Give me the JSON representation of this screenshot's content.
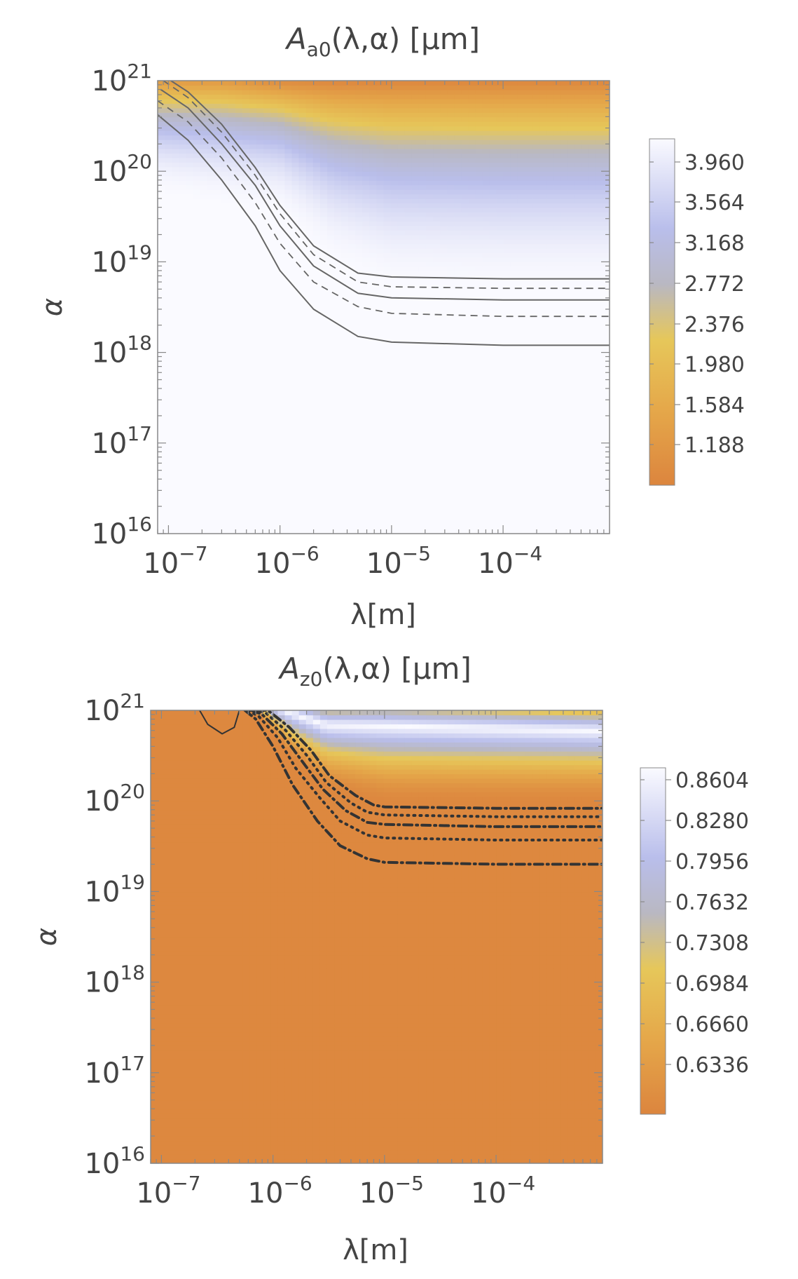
{
  "colors": {
    "orange": "#DC853E",
    "mid_orange": "#E5A84A",
    "yellow": "#E6C75A",
    "gray": "#B9B8C2",
    "blue": "#B9BEEB",
    "white": "#FAFAFF",
    "contour_light": "#666666",
    "contour_dark": "#333333"
  },
  "chart_data": [
    {
      "type": "heatmap",
      "title": {
        "italic": "A",
        "sub": "a0",
        "rest": "(λ,α) [μm]"
      },
      "xlabel": "λ[m]",
      "ylabel": "α",
      "x_scale": "log",
      "y_scale": "log",
      "xlim": [
        8e-08,
        0.0009
      ],
      "ylim": [
        1e+16,
        1e+21
      ],
      "x_ticks": [
        {
          "value": 1e-07,
          "base": "10",
          "exp": "−7"
        },
        {
          "value": 1e-06,
          "base": "10",
          "exp": "−6"
        },
        {
          "value": 1e-05,
          "base": "10",
          "exp": "−5"
        },
        {
          "value": 0.0001,
          "base": "10",
          "exp": "−4"
        }
      ],
      "y_ticks": [
        {
          "value": 1e+16,
          "base": "10",
          "exp": "16"
        },
        {
          "value": 1e+17,
          "base": "10",
          "exp": "17"
        },
        {
          "value": 1e+18,
          "base": "10",
          "exp": "18"
        },
        {
          "value": 1e+19,
          "base": "10",
          "exp": "19"
        },
        {
          "value": 1e+20,
          "base": "10",
          "exp": "20"
        },
        {
          "value": 1e+21,
          "base": "10",
          "exp": "21"
        }
      ],
      "colorbar": {
        "min": 0.95,
        "max": 4.2,
        "ticks": [
          "3.960",
          "3.564",
          "3.168",
          "2.772",
          "2.376",
          "1.980",
          "1.584",
          "1.188"
        ]
      },
      "field": {
        "baseline": 4.2,
        "lower_boundary": [
          [
            8e-08,
            5e+19
          ],
          [
            1e-06,
            3e+19
          ],
          [
            3e-06,
            8e+18
          ],
          [
            1e-05,
            4e+18
          ],
          [
            0.0001,
            3.5e+18
          ],
          [
            0.0009,
            3.5e+18
          ]
        ],
        "trough": [
          [
            8e-08,
            1.2e+21
          ],
          [
            3e-07,
            1.2e+21
          ],
          [
            1e-06,
            1.05e+21
          ],
          [
            3e-06,
            1e+21
          ],
          [
            0.0009,
            1e+21
          ]
        ],
        "peak_min": 1.0
      },
      "contours": [
        {
          "style": "solid",
          "points": [
            [
              8e-08,
              4.2e+20
            ],
            [
              1.5e-07,
              2.2e+20
            ],
            [
              3e-07,
              8e+19
            ],
            [
              6e-07,
              2.5e+19
            ],
            [
              1e-06,
              8e+18
            ],
            [
              2e-06,
              3e+18
            ],
            [
              5e-06,
              1.5e+18
            ],
            [
              1e-05,
              1.3e+18
            ],
            [
              0.0001,
              1.2e+18
            ],
            [
              0.0009,
              1.2e+18
            ]
          ]
        },
        {
          "style": "dashed",
          "points": [
            [
              8e-08,
              6e+20
            ],
            [
              1.5e-07,
              3.5e+20
            ],
            [
              3e-07,
              1.4e+20
            ],
            [
              6e-07,
              4.5e+19
            ],
            [
              1e-06,
              1.6e+19
            ],
            [
              2e-06,
              6e+18
            ],
            [
              5e-06,
              3.2e+18
            ],
            [
              1e-05,
              2.7e+18
            ],
            [
              0.0001,
              2.5e+18
            ],
            [
              0.0009,
              2.5e+18
            ]
          ]
        },
        {
          "style": "solid",
          "points": [
            [
              8.5e-08,
              8e+20
            ],
            [
              1.5e-07,
              5e+20
            ],
            [
              3e-07,
              2e+20
            ],
            [
              6e-07,
              7e+19
            ],
            [
              1e-06,
              2.5e+19
            ],
            [
              2e-06,
              9e+18
            ],
            [
              5e-06,
              4.5e+18
            ],
            [
              1e-05,
              4e+18
            ],
            [
              0.0001,
              3.8e+18
            ],
            [
              0.0009,
              3.8e+18
            ]
          ]
        },
        {
          "style": "dashed",
          "points": [
            [
              9e-08,
              1e+21
            ],
            [
              1.5e-07,
              6.5e+20
            ],
            [
              3e-07,
              2.7e+20
            ],
            [
              6e-07,
              9e+19
            ],
            [
              1e-06,
              3.4e+19
            ],
            [
              2e-06,
              1.2e+19
            ],
            [
              5e-06,
              6e+18
            ],
            [
              1e-05,
              5.3e+18
            ],
            [
              0.0001,
              5.1e+18
            ],
            [
              0.0009,
              5.1e+18
            ]
          ]
        },
        {
          "style": "solid",
          "points": [
            [
              1.05e-07,
              1e+21
            ],
            [
              1.5e-07,
              7.5e+20
            ],
            [
              3e-07,
              3.3e+20
            ],
            [
              6e-07,
              1.1e+20
            ],
            [
              1e-06,
              4.2e+19
            ],
            [
              2e-06,
              1.5e+19
            ],
            [
              5e-06,
              7.5e+18
            ],
            [
              1e-05,
              6.8e+18
            ],
            [
              0.0001,
              6.5e+18
            ],
            [
              0.0009,
              6.5e+18
            ]
          ]
        }
      ]
    },
    {
      "type": "heatmap",
      "title": {
        "italic": "A",
        "sub": "z0",
        "rest": "(λ,α) [μm]"
      },
      "xlabel": "λ[m]",
      "ylabel": "α",
      "x_scale": "log",
      "y_scale": "log",
      "xlim": [
        8e-08,
        0.0009
      ],
      "ylim": [
        1e+16,
        1e+21
      ],
      "x_ticks": [
        {
          "value": 1e-07,
          "base": "10",
          "exp": "−7"
        },
        {
          "value": 1e-06,
          "base": "10",
          "exp": "−6"
        },
        {
          "value": 1e-05,
          "base": "10",
          "exp": "−5"
        },
        {
          "value": 0.0001,
          "base": "10",
          "exp": "−4"
        }
      ],
      "y_ticks": [
        {
          "value": 1e+16,
          "base": "10",
          "exp": "16"
        },
        {
          "value": 1e+17,
          "base": "10",
          "exp": "17"
        },
        {
          "value": 1e+18,
          "base": "10",
          "exp": "18"
        },
        {
          "value": 1e+19,
          "base": "10",
          "exp": "19"
        },
        {
          "value": 1e+20,
          "base": "10",
          "exp": "20"
        },
        {
          "value": 1e+21,
          "base": "10",
          "exp": "21"
        }
      ],
      "colorbar": {
        "min": 0.615,
        "max": 0.878,
        "ticks": [
          "0.8604",
          "0.8280",
          "0.7956",
          "0.7632",
          "0.7308",
          "0.6984",
          "0.6660",
          "0.6336"
        ]
      },
      "field": {
        "baseline": 0.62,
        "upper_onset": [
          [
            8e-08,
            1.6e+21
          ],
          [
            5e-07,
            1.6e+21
          ],
          [
            8e-07,
            8e+20
          ],
          [
            1.5e-06,
            3e+20
          ],
          [
            3e-06,
            1.4e+20
          ],
          [
            1e-05,
            1e+20
          ],
          [
            0.0009,
            1e+20
          ]
        ],
        "peak_alpha": [
          [
            8e-08,
            2e+21
          ],
          [
            6e-07,
            1.6e+21
          ],
          [
            1e-06,
            1.1e+21
          ],
          [
            3e-06,
            7e+20
          ],
          [
            0.0009,
            6e+20
          ]
        ],
        "peak_max": 0.878
      },
      "contours": [
        {
          "style": "solid",
          "points": [
            [
              2.2e-07,
              1e+21
            ],
            [
              2.6e-07,
              7e+20
            ],
            [
              3.5e-07,
              5.5e+20
            ],
            [
              4.5e-07,
              6.5e+20
            ],
            [
              5e-07,
              1e+21
            ]
          ]
        },
        {
          "style": "dashdot",
          "points": [
            [
              5.6e-07,
              1e+21
            ],
            [
              7e-07,
              8e+20
            ],
            [
              1e-06,
              4e+20
            ],
            [
              1.5e-06,
              1.5e+20
            ],
            [
              2.5e-06,
              6e+19
            ],
            [
              4e-06,
              3.2e+19
            ],
            [
              7e-06,
              2.3e+19
            ],
            [
              1e-05,
              2.1e+19
            ],
            [
              0.0001,
              2e+19
            ],
            [
              0.0009,
              2e+19
            ]
          ]
        },
        {
          "style": "dotted",
          "points": [
            [
              6e-07,
              1e+21
            ],
            [
              7.5e-07,
              8.5e+20
            ],
            [
              1.1e-06,
              5e+20
            ],
            [
              1.6e-06,
              2.3e+20
            ],
            [
              2.6e-06,
              1.1e+20
            ],
            [
              4e-06,
              6e+19
            ],
            [
              7e-06,
              4.2e+19
            ],
            [
              1e-05,
              3.9e+19
            ],
            [
              0.0001,
              3.7e+19
            ],
            [
              0.0009,
              3.7e+19
            ]
          ]
        },
        {
          "style": "dashdot",
          "points": [
            [
              6.4e-07,
              1e+21
            ],
            [
              8e-07,
              9e+20
            ],
            [
              1.2e-06,
              5.5e+20
            ],
            [
              1.8e-06,
              2.8e+20
            ],
            [
              2.8e-06,
              1.35e+20
            ],
            [
              4.5e-06,
              7.8e+19
            ],
            [
              7e-06,
              5.8e+19
            ],
            [
              1e-05,
              5.5e+19
            ],
            [
              0.0001,
              5.2e+19
            ],
            [
              0.0009,
              5.2e+19
            ]
          ]
        },
        {
          "style": "dotted",
          "points": [
            [
              6.8e-07,
              1e+21
            ],
            [
              8.5e-07,
              9.5e+20
            ],
            [
              1.3e-06,
              6e+20
            ],
            [
              2e-06,
              3.2e+20
            ],
            [
              3e-06,
              1.6e+20
            ],
            [
              5e-06,
              9.5e+19
            ],
            [
              7e-06,
              7.5e+19
            ],
            [
              1e-05,
              7e+19
            ],
            [
              0.0001,
              6.7e+19
            ],
            [
              0.0009,
              6.7e+19
            ]
          ]
        },
        {
          "style": "dashdot",
          "points": [
            [
              7.2e-07,
              1e+21
            ],
            [
              9e-07,
              1e+21
            ],
            [
              1.4e-06,
              6.5e+20
            ],
            [
              2.2e-06,
              3.6e+20
            ],
            [
              3.2e-06,
              1.9e+20
            ],
            [
              5.5e-06,
              1.15e+20
            ],
            [
              8e-06,
              9e+19
            ],
            [
              1e-05,
              8.6e+19
            ],
            [
              0.0001,
              8.3e+19
            ],
            [
              0.0009,
              8.3e+19
            ]
          ]
        }
      ]
    }
  ]
}
